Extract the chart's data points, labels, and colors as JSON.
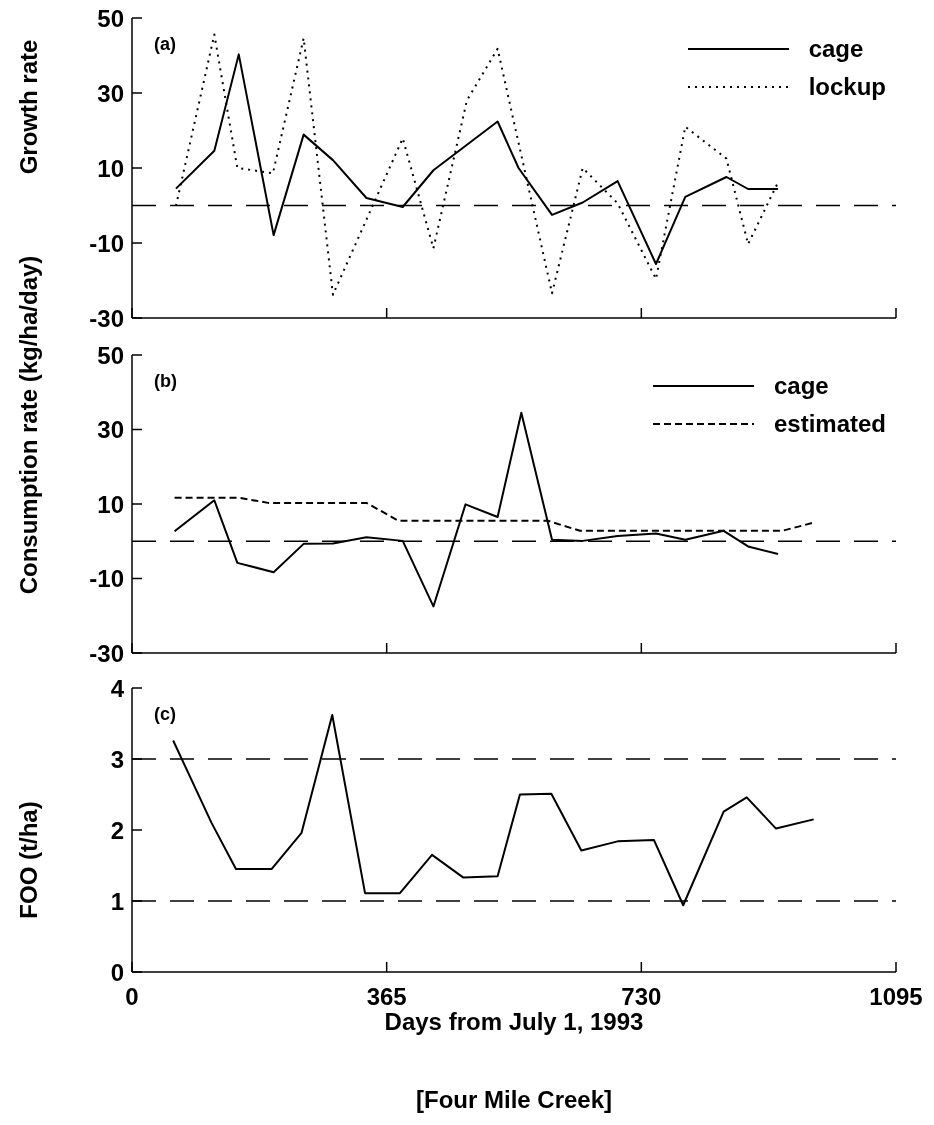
{
  "chart_data": [
    {
      "type": "line",
      "ylabel": "Growth rate",
      "annotations": [
        "(a)"
      ],
      "legend": "top right",
      "tick_labels": "y",
      "marker": "none",
      "xlim": [
        0,
        1095
      ],
      "xticks": [
        {
          "value": 0,
          "label": null
        },
        {
          "value": 365,
          "label": null
        },
        {
          "value": 730,
          "label": null
        },
        {
          "value": 1095,
          "label": null
        }
      ],
      "ylim": [
        -30,
        50
      ],
      "yticks": [
        -30,
        -10,
        10,
        30,
        50
      ],
      "ref_lines": [
        {
          "axis": "y",
          "value": 0,
          "label": null,
          "color": "#000000",
          "line_style": "dashed"
        }
      ],
      "series": [
        {
          "name": "cage",
          "color": "#000000",
          "line_style": "solid",
          "x": [
            63,
            118,
            153,
            203,
            246,
            288,
            336,
            388,
            432,
            524,
            554,
            602,
            646,
            696,
            751,
            793,
            852,
            883,
            926
          ],
          "values": [
            4.5,
            14.6,
            40.3,
            -7.9,
            18.9,
            12.1,
            2.0,
            -0.4,
            9.4,
            22.4,
            10,
            -2.5,
            0.8,
            6.5,
            -15.6,
            2.3,
            7.6,
            4.4,
            4.4
          ]
        },
        {
          "name": "lockup",
          "color": "#000000",
          "line_style": "dotted",
          "x": [
            63,
            118,
            151,
            202,
            246,
            288,
            388,
            432,
            480,
            524,
            602,
            646,
            696,
            751,
            793,
            852,
            883,
            926
          ],
          "values": [
            -0.1,
            45.6,
            10,
            8.6,
            44.6,
            -23.8,
            17.9,
            -11.4,
            28,
            41.8,
            -23.4,
            10,
            0.6,
            -19.6,
            21,
            12.5,
            -10.3,
            6.2
          ]
        }
      ]
    },
    {
      "type": "line",
      "ylabel": "Consumption rate (kg/ha/day)",
      "annotations": [
        "(b)"
      ],
      "legend": "top right",
      "tick_labels": "y",
      "marker": "none",
      "xlim": [
        0,
        1095
      ],
      "xticks": [
        {
          "value": 0,
          "label": null
        },
        {
          "value": 365,
          "label": null
        },
        {
          "value": 730,
          "label": null
        },
        {
          "value": 1095,
          "label": null
        }
      ],
      "ylim": [
        -30,
        50
      ],
      "yticks": [
        -30,
        -10,
        10,
        30,
        50
      ],
      "ref_lines": [
        {
          "axis": "y",
          "value": 0,
          "label": null,
          "color": "#000000",
          "line_style": "dashed"
        }
      ],
      "series": [
        {
          "name": "cage",
          "color": "#000000",
          "line_style": "solid",
          "x": [
            61,
            118,
            151,
            203,
            246,
            288,
            336,
            388,
            432,
            478,
            524,
            558,
            602,
            646,
            696,
            751,
            793,
            848,
            883,
            926
          ],
          "values": [
            2.7,
            11,
            -5.8,
            -8.3,
            -0.7,
            -0.6,
            1.1,
            0.1,
            -17.5,
            9.9,
            6.5,
            34.5,
            0.4,
            0.1,
            1.4,
            2.1,
            0.4,
            2.8,
            -1.4,
            -3.4
          ]
        },
        {
          "name": "estimated",
          "color": "#000000",
          "line_style": "dashed",
          "x": [
            61,
            153,
            195,
            336,
            382,
            596,
            642,
            932,
            975
          ],
          "values": [
            11.7,
            11.7,
            10.3,
            10.3,
            5.5,
            5.5,
            2.8,
            2.8,
            4.9
          ]
        }
      ]
    },
    {
      "type": "line",
      "ylabel": "FOO (t/ha)",
      "xlabel": "Days from July 1, 1993",
      "annotations": [
        "(c)",
        "[Four Mile Creek]"
      ],
      "marker": "none",
      "xlim": [
        0,
        1095
      ],
      "xticks": [
        0,
        365,
        730,
        1095
      ],
      "ylim": [
        0,
        4
      ],
      "yticks": [
        0,
        1,
        2,
        3,
        4
      ],
      "ref_lines": [
        {
          "axis": "y",
          "value": 1,
          "label": null,
          "color": "#000000",
          "line_style": "dashed"
        },
        {
          "axis": "y",
          "value": 3,
          "label": null,
          "color": "#000000",
          "line_style": "dashed"
        }
      ],
      "series": [
        {
          "color": "#000000",
          "line_style": "solid",
          "x": [
            59,
            114,
            149,
            200,
            243,
            287,
            334,
            384,
            430,
            475,
            524,
            556,
            601,
            644,
            696,
            748,
            790,
            848,
            881,
            923,
            977
          ],
          "values": [
            3.26,
            2.1,
            1.45,
            1.45,
            1.96,
            3.62,
            1.11,
            1.11,
            1.65,
            1.33,
            1.35,
            2.5,
            2.51,
            1.71,
            1.84,
            1.86,
            0.94,
            2.26,
            2.46,
            2.02,
            2.15
          ]
        }
      ]
    }
  ]
}
